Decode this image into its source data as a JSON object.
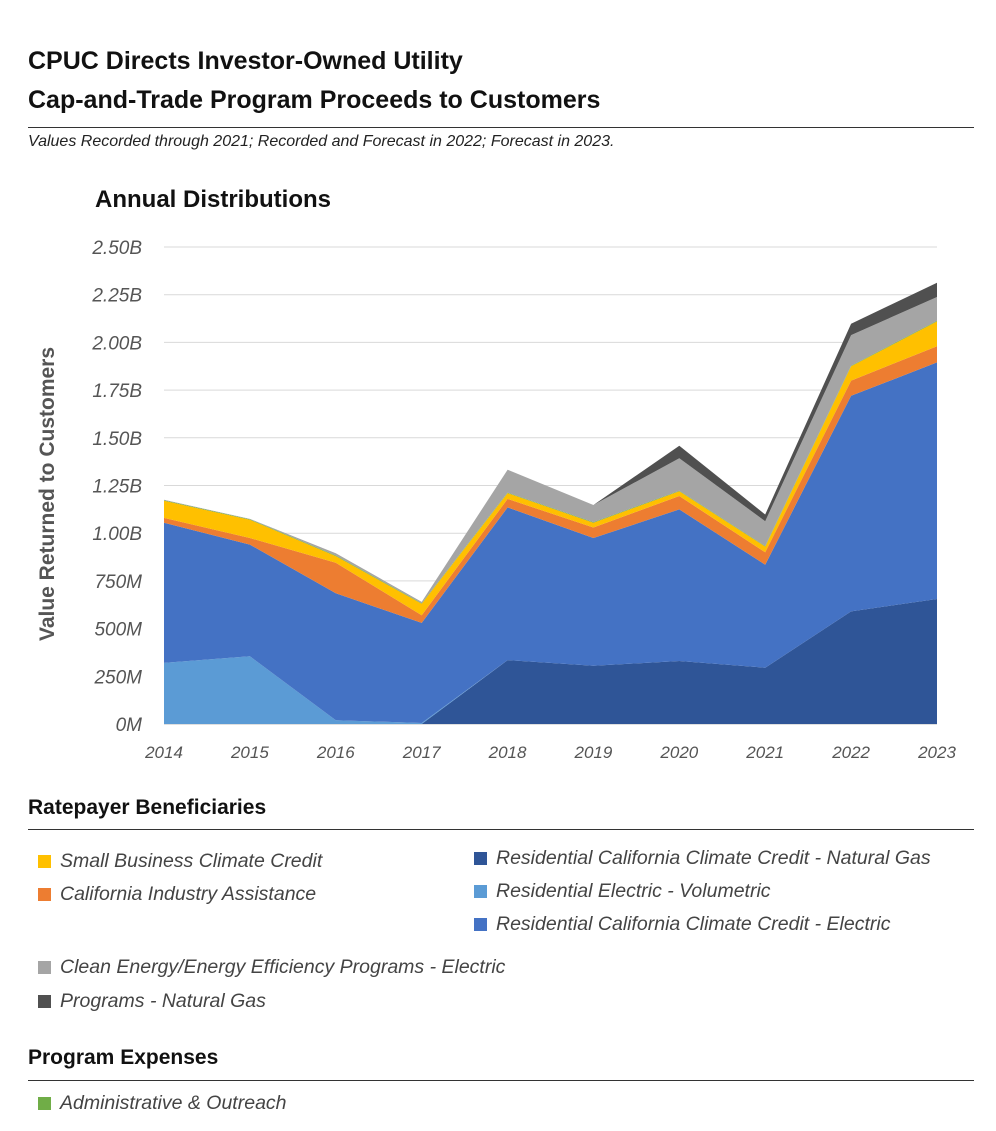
{
  "header": {
    "title_line1": "CPUC Directs Investor-Owned Utility",
    "title_line2": "Cap-and-Trade Program Proceeds to Customers",
    "subtitle": "Values Recorded through 2021; Recorded and Forecast in 2022; Forecast in 2023."
  },
  "chart_data": {
    "type": "area",
    "stacked": true,
    "title": "Annual Distributions",
    "xlabel": "",
    "ylabel": "Value Returned to Customers",
    "ylim": [
      0,
      2500000000
    ],
    "yticks": [
      0,
      250000000,
      500000000,
      750000000,
      1000000000,
      1250000000,
      1500000000,
      1750000000,
      2000000000,
      2250000000,
      2500000000
    ],
    "ytick_labels": [
      "0M",
      "250M",
      "500M",
      "750M",
      "1.00B",
      "1.25B",
      "1.50B",
      "1.75B",
      "2.00B",
      "2.25B",
      "2.50B"
    ],
    "x": [
      "2014",
      "2015",
      "2016",
      "2017",
      "2018",
      "2019",
      "2020",
      "2021",
      "2022",
      "2023"
    ],
    "grid": true,
    "legend_position": "bottom",
    "series": [
      {
        "name": "Residential California Climate Credit - Natural Gas",
        "color": "#2f5597",
        "values": [
          0,
          0,
          0,
          0,
          335,
          305,
          330,
          295,
          590,
          655
        ]
      },
      {
        "name": "Residential Electric - Volumetric",
        "color": "#5b9bd5",
        "values": [
          320,
          355,
          20,
          5,
          0,
          0,
          0,
          0,
          0,
          0
        ]
      },
      {
        "name": "Residential California Climate Credit - Electric",
        "color": "#4472c4",
        "values": [
          735,
          585,
          665,
          525,
          800,
          670,
          795,
          540,
          1130,
          1240
        ]
      },
      {
        "name": "California Industry Assistance",
        "color": "#ed7d31",
        "values": [
          25,
          35,
          160,
          40,
          45,
          55,
          70,
          65,
          80,
          85
        ]
      },
      {
        "name": "Small Business Climate Credit",
        "color": "#ffc000",
        "values": [
          90,
          95,
          35,
          60,
          30,
          25,
          25,
          30,
          75,
          130
        ]
      },
      {
        "name": "Administrative & Outreach",
        "color": "#70ad47",
        "values": [
          3,
          3,
          3,
          3,
          3,
          3,
          3,
          3,
          3,
          3
        ]
      },
      {
        "name": "Clean Energy/Energy Efficiency Programs - Electric",
        "color": "#a5a5a5",
        "values": [
          2,
          2,
          12,
          7,
          120,
          90,
          170,
          130,
          160,
          125
        ]
      },
      {
        "name": "Programs - Natural Gas",
        "color": "#505050",
        "values": [
          0,
          0,
          0,
          0,
          0,
          0,
          65,
          35,
          60,
          75
        ]
      }
    ],
    "value_units": "millions"
  },
  "sections": {
    "ratepayer": "Ratepayer Beneficiaries",
    "expenses": "Program Expenses"
  },
  "legend": {
    "small_business": "Small Business Climate Credit",
    "industry": "California Industry Assistance",
    "res_gas": "Residential California Climate Credit - Natural Gas",
    "res_volumetric": "Residential Electric - Volumetric",
    "res_electric": "Residential California Climate Credit - Electric",
    "clean_energy": "Clean Energy/Energy Efficiency Programs - Electric",
    "programs_gas": "Programs  - Natural Gas",
    "admin": "Administrative & Outreach"
  },
  "colors": {
    "small_business": "#ffc000",
    "industry": "#ed7d31",
    "res_gas": "#2f5597",
    "res_volumetric": "#5b9bd5",
    "res_electric": "#4472c4",
    "clean_energy": "#a5a5a5",
    "programs_gas": "#505050",
    "admin": "#70ad47"
  }
}
